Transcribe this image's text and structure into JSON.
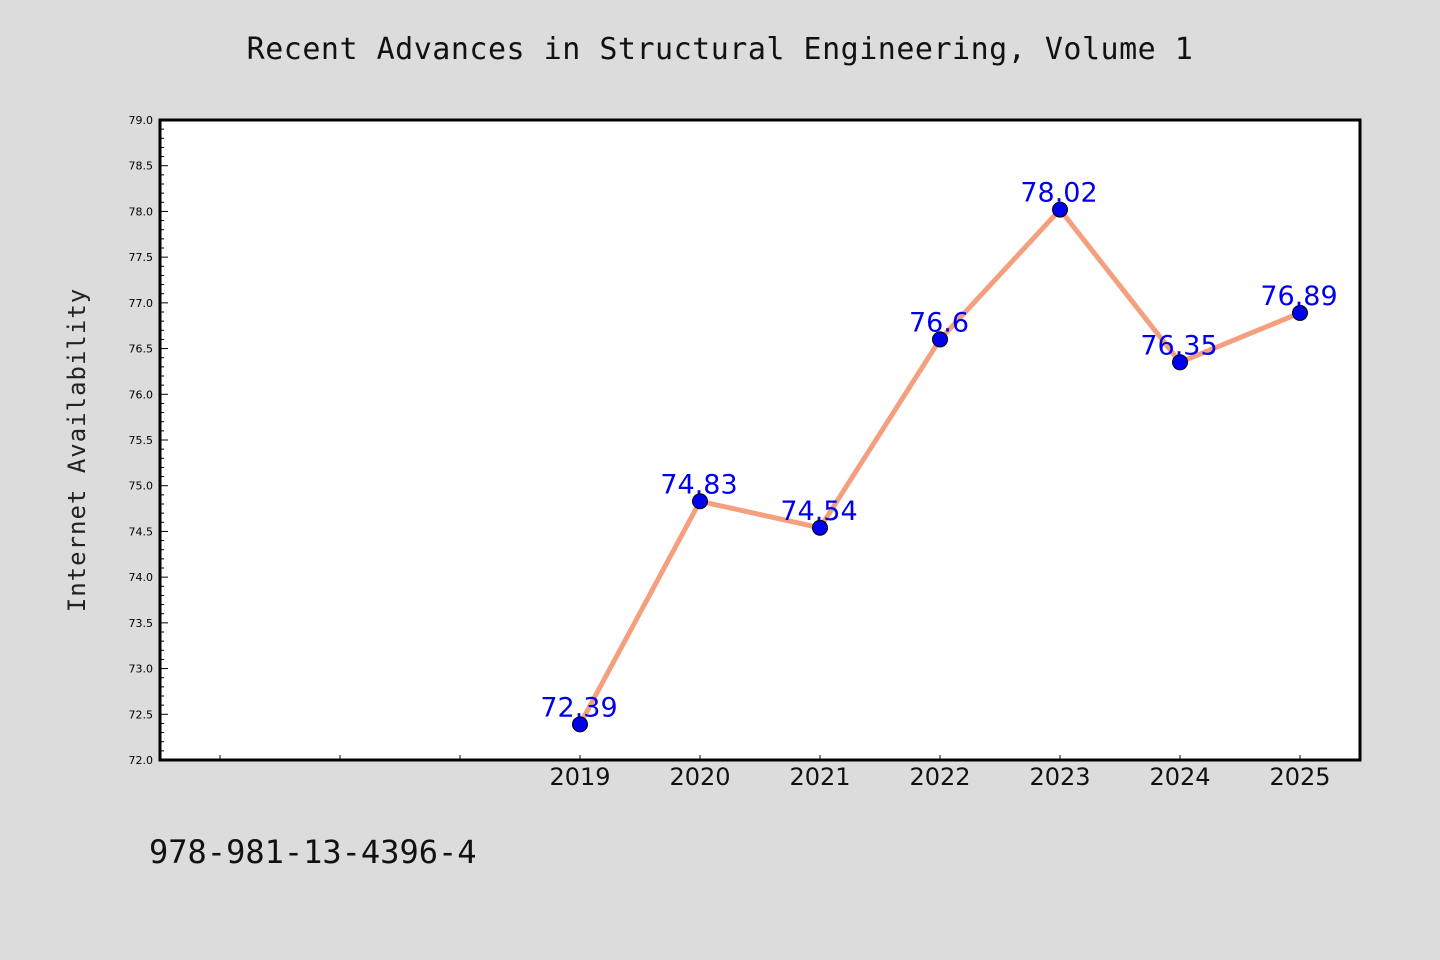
{
  "chart_data": {
    "type": "line",
    "title": "Recent Advances in Structural Engineering, Volume 1",
    "xlabel": "",
    "ylabel": "Internet Availability",
    "categories": [
      "2019",
      "2020",
      "2021",
      "2022",
      "2023",
      "2024",
      "2025"
    ],
    "series": [
      {
        "values": [
          72.39,
          74.83,
          74.54,
          76.6,
          78.02,
          76.35,
          76.89
        ],
        "data_labels": [
          "72.39",
          "74.83",
          "74.54",
          "76.6",
          "78.02",
          "76.35",
          "76.89"
        ]
      }
    ],
    "ylim": [
      72.0,
      79.0
    ],
    "yticks": [
      "72.0",
      "72.5",
      "73.0",
      "73.5",
      "74.0",
      "74.5",
      "75.0",
      "75.5",
      "76.0",
      "76.5",
      "77.0",
      "77.5",
      "78.0",
      "78.5",
      "79.0"
    ],
    "line_color": "#f4a07f",
    "marker_color": "#0000ee",
    "label_color": "#0000ee",
    "grid": false,
    "legend": "none"
  },
  "footer": {
    "isbn": "978-981-13-4396-4"
  }
}
